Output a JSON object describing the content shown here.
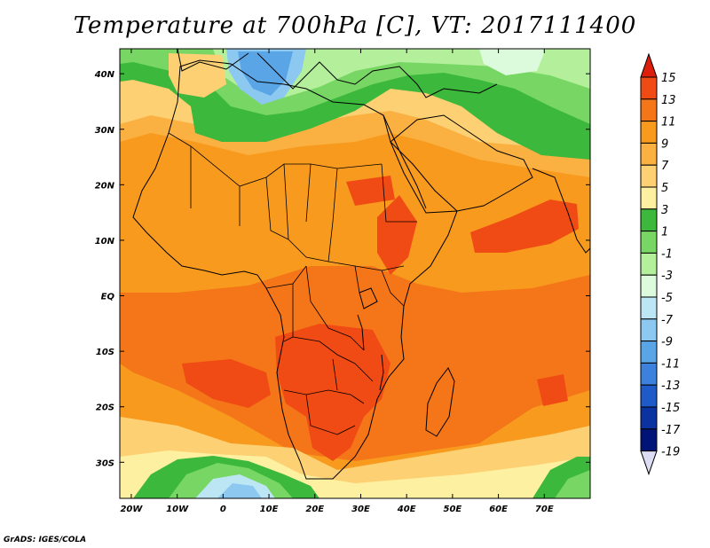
{
  "title": "Temperature at 700hPa [C], VT: 2017111400",
  "credit": "GrADS: IGES/COLA",
  "axes": {
    "lat_labels": [
      "40N",
      "30N",
      "20N",
      "10N",
      "EQ",
      "10S",
      "20S",
      "30S"
    ],
    "lat_values": [
      40,
      30,
      20,
      10,
      0,
      -10,
      -20,
      -30
    ],
    "lon_labels": [
      "20W",
      "10W",
      "0",
      "10E",
      "20E",
      "30E",
      "40E",
      "50E",
      "60E",
      "70E"
    ],
    "lon_values": [
      -20,
      -10,
      0,
      10,
      20,
      30,
      40,
      50,
      60,
      70
    ],
    "lon_range": [
      -22.5,
      80
    ],
    "lat_range": [
      -36.5,
      44.5
    ]
  },
  "colorbar": {
    "labels": [
      "15",
      "13",
      "11",
      "9",
      "7",
      "5",
      "3",
      "1",
      "-1",
      "-3",
      "-5",
      "-7",
      "-9",
      "-11",
      "-13",
      "-15",
      "-17",
      "-19"
    ],
    "colors": [
      "#dc1e0a",
      "#f04b14",
      "#f57519",
      "#f89a1e",
      "#fab141",
      "#fdd073",
      "#fdf0a0",
      "#3cb83c",
      "#78d764",
      "#b4f09b",
      "#dcfadc",
      "#bde6f5",
      "#8cc8f0",
      "#5aa5e6",
      "#3c82dc",
      "#1e5ac8",
      "#0a32a0",
      "#001478"
    ],
    "end_colors": {
      "top": "#dc1e0a",
      "bottom": "#dcdcf5"
    }
  }
}
